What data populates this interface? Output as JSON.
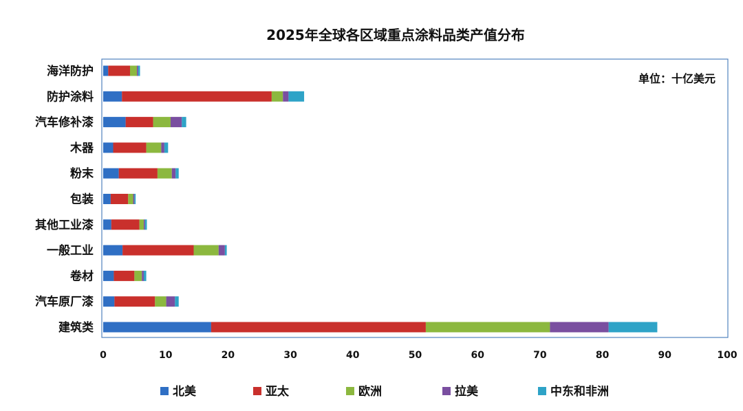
{
  "chart_data": {
    "type": "bar",
    "orientation": "horizontal",
    "stacked": true,
    "title": "2025年全球各区域重点涂料品类产值分布",
    "unit": "单位：十亿美元",
    "categories": [
      "海洋防护",
      "防护涂料",
      "汽车修补漆",
      "木器",
      "粉末",
      "包装",
      "其他工业漆",
      "一般工业",
      "卷材",
      "汽车原厂漆",
      "建筑类"
    ],
    "series": [
      {
        "name": "北美",
        "color": "#2F6FC4",
        "values": [
          0.8,
          3.0,
          3.6,
          1.6,
          2.5,
          1.2,
          1.3,
          3.1,
          1.7,
          1.8,
          17.3
        ]
      },
      {
        "name": "亚太",
        "color": "#C9302C",
        "values": [
          3.5,
          24.0,
          4.4,
          5.3,
          6.2,
          2.8,
          4.5,
          11.4,
          3.3,
          6.5,
          34.4
        ]
      },
      {
        "name": "欧洲",
        "color": "#8CB83F",
        "values": [
          1.1,
          1.8,
          2.8,
          2.4,
          2.3,
          0.8,
          0.7,
          4.0,
          1.2,
          1.8,
          19.9
        ]
      },
      {
        "name": "拉美",
        "color": "#7A4FA0",
        "values": [
          0.2,
          0.9,
          1.8,
          0.5,
          0.6,
          0.2,
          0.2,
          1.0,
          0.3,
          1.4,
          9.4
        ]
      },
      {
        "name": "中东和非洲",
        "color": "#2EA3C7",
        "values": [
          0.3,
          2.5,
          0.7,
          0.6,
          0.5,
          0.2,
          0.3,
          0.3,
          0.4,
          0.6,
          7.8
        ]
      }
    ],
    "xlim": [
      0,
      100
    ],
    "xticks": [
      0,
      10,
      20,
      30,
      40,
      50,
      60,
      70,
      80,
      90,
      100
    ],
    "grid": false,
    "legend_position": "bottom"
  }
}
